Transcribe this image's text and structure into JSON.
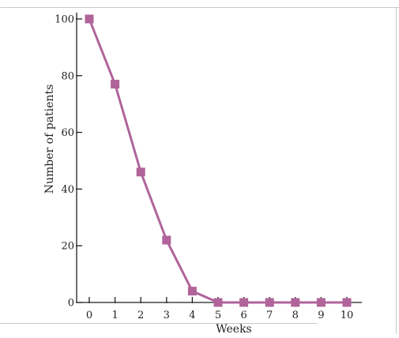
{
  "chart_data": {
    "type": "line",
    "title": "",
    "xlabel": "Weeks",
    "ylabel": "Number of patients",
    "x": [
      0,
      1,
      2,
      3,
      4,
      5,
      6,
      7,
      8,
      9,
      10
    ],
    "series": [
      {
        "values": [
          100,
          77,
          46,
          22,
          4,
          0,
          0,
          0,
          0,
          0,
          0
        ]
      }
    ],
    "xlim": [
      0,
      10
    ],
    "ylim": [
      0,
      100
    ],
    "xticks": [
      0,
      1,
      2,
      3,
      4,
      5,
      6,
      7,
      8,
      9,
      10
    ],
    "yticks": [
      0,
      20,
      40,
      60,
      80,
      100
    ],
    "marker": "square",
    "grid": false,
    "legend": "none",
    "colors": {
      "series": "#b0649a",
      "axis": "#231f20",
      "frame": "#c8c8c8"
    }
  }
}
